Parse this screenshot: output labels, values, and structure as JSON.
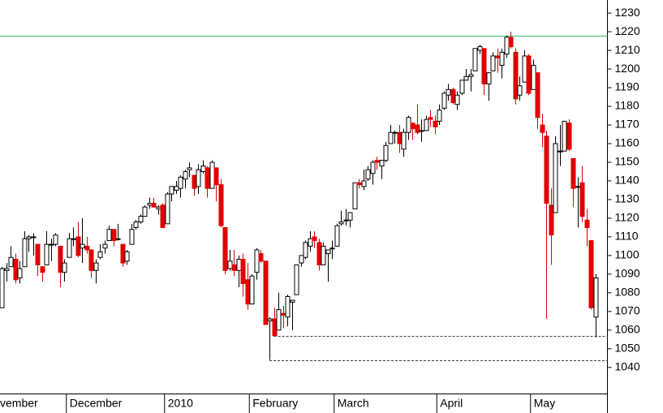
{
  "chart_data": {
    "type": "candlestick",
    "open": [
      1072,
      1092,
      1094,
      1098,
      1088,
      1094,
      1109,
      1110,
      1106,
      1094,
      1095,
      1106,
      1106,
      1105,
      1091,
      1099,
      1109,
      1110,
      1104,
      1105,
      1103,
      1092,
      1099,
      1104,
      1108,
      1114,
      1109,
      1106,
      1097,
      1106,
      1115,
      1118,
      1121,
      1127,
      1128,
      1125,
      1127,
      1117,
      1133,
      1135,
      1136,
      1141,
      1146,
      1143,
      1137,
      1145,
      1147,
      1136,
      1147,
      1138,
      1115,
      1093,
      1095,
      1092,
      1098,
      1087,
      1074,
      1091,
      1101,
      1097,
      1065,
      1066,
      1060,
      1069,
      1067,
      1075,
      1079,
      1096,
      1099,
      1105,
      1110,
      1107,
      1095,
      1101,
      1104,
      1105,
      1117,
      1119,
      1119,
      1125,
      1139,
      1137,
      1141,
      1144,
      1151,
      1148,
      1151,
      1160,
      1166,
      1166,
      1157,
      1166,
      1171,
      1170,
      1167,
      1167,
      1174,
      1172,
      1172,
      1179,
      1186,
      1189,
      1181,
      1187,
      1194,
      1196,
      1199,
      1210,
      1211,
      1192,
      1199,
      1207,
      1202,
      1208,
      1217,
      1209,
      1186,
      1193,
      1207,
      1189,
      1198,
      1170,
      1164,
      1127,
      1123,
      1156,
      1156,
      1171,
      1152,
      1137,
      1139,
      1119,
      1108,
      1067
    ],
    "high": [
      1094,
      1096,
      1105,
      1101,
      1097,
      1113,
      1111,
      1112,
      1106,
      1094,
      1113,
      1109,
      1112,
      1105,
      1098,
      1112,
      1115,
      1118,
      1120,
      1110,
      1103,
      1098,
      1106,
      1108,
      1116,
      1114,
      1117,
      1106,
      1103,
      1117,
      1119,
      1122,
      1127,
      1131,
      1131,
      1127,
      1128,
      1134,
      1137,
      1140,
      1143,
      1146,
      1150,
      1143,
      1149,
      1151,
      1148,
      1151,
      1147,
      1141,
      1115,
      1103,
      1103,
      1100,
      1101,
      1096,
      1090,
      1104,
      1103,
      1097,
      1067,
      1072,
      1080,
      1073,
      1079,
      1076,
      1095,
      1100,
      1108,
      1113,
      1113,
      1109,
      1107,
      1103,
      1108,
      1117,
      1124,
      1125,
      1123,
      1139,
      1141,
      1146,
      1148,
      1151,
      1153,
      1151,
      1161,
      1170,
      1167,
      1170,
      1168,
      1175,
      1171,
      1181,
      1173,
      1175,
      1178,
      1175,
      1181,
      1188,
      1192,
      1190,
      1188,
      1194,
      1200,
      1200,
      1211,
      1213,
      1211,
      1198,
      1209,
      1211,
      1211,
      1218,
      1220,
      1211,
      1196,
      1210,
      1208,
      1205,
      1198,
      1176,
      1167,
      1136,
      1164,
      1170,
      1172,
      1173,
      1152,
      1142,
      1148,
      1125,
      1108,
      1090
    ],
    "low": [
      1072,
      1086,
      1094,
      1085,
      1085,
      1094,
      1102,
      1100,
      1089,
      1086,
      1095,
      1097,
      1105,
      1083,
      1086,
      1099,
      1105,
      1099,
      1096,
      1101,
      1088,
      1085,
      1098,
      1101,
      1108,
      1105,
      1108,
      1094,
      1095,
      1106,
      1114,
      1117,
      1121,
      1125,
      1126,
      1122,
      1115,
      1117,
      1129,
      1133,
      1131,
      1136,
      1142,
      1132,
      1133,
      1144,
      1131,
      1136,
      1129,
      1115,
      1090,
      1092,
      1089,
      1083,
      1078,
      1071,
      1074,
      1087,
      1096,
      1063,
      1044,
      1057,
      1060,
      1061,
      1062,
      1060,
      1079,
      1094,
      1098,
      1102,
      1104,
      1092,
      1095,
      1086,
      1098,
      1105,
      1116,
      1116,
      1115,
      1125,
      1136,
      1135,
      1140,
      1138,
      1146,
      1141,
      1150,
      1160,
      1160,
      1155,
      1153,
      1162,
      1162,
      1165,
      1161,
      1167,
      1169,
      1165,
      1170,
      1178,
      1183,
      1181,
      1178,
      1186,
      1194,
      1188,
      1199,
      1208,
      1186,
      1183,
      1199,
      1198,
      1195,
      1206,
      1211,
      1181,
      1183,
      1193,
      1186,
      1189,
      1168,
      1158,
      1066,
      1095,
      1123,
      1148,
      1156,
      1156,
      1126,
      1115,
      1118,
      1105,
      1071,
      1056
    ],
    "close": [
      1093,
      1093,
      1099,
      1087,
      1093,
      1109,
      1110,
      1110,
      1095,
      1091,
      1106,
      1106,
      1111,
      1091,
      1096,
      1109,
      1109,
      1100,
      1106,
      1103,
      1092,
      1096,
      1102,
      1106,
      1114,
      1108,
      1109,
      1096,
      1102,
      1114,
      1118,
      1121,
      1126,
      1128,
      1126,
      1126,
      1115,
      1133,
      1137,
      1137,
      1142,
      1145,
      1147,
      1136,
      1146,
      1148,
      1136,
      1150,
      1138,
      1116,
      1092,
      1097,
      1092,
      1098,
      1085,
      1074,
      1089,
      1103,
      1097,
      1063,
      1066,
      1057,
      1071,
      1068,
      1078,
      1076,
      1095,
      1100,
      1107,
      1109,
      1108,
      1095,
      1105,
      1103,
      1104,
      1116,
      1118,
      1119,
      1123,
      1139,
      1138,
      1140,
      1146,
      1150,
      1150,
      1151,
      1159,
      1166,
      1166,
      1160,
      1166,
      1174,
      1168,
      1166,
      1167,
      1173,
      1173,
      1169,
      1178,
      1187,
      1189,
      1182,
      1186,
      1194,
      1196,
      1197,
      1211,
      1212,
      1192,
      1198,
      1207,
      1206,
      1209,
      1217,
      1212,
      1184,
      1191,
      1207,
      1187,
      1202,
      1174,
      1166,
      1128,
      1111,
      1160,
      1156,
      1172,
      1157,
      1136,
      1137,
      1121,
      1115,
      1072,
      1088
    ],
    "up_color": "#ffffff",
    "down_color": "#e00000",
    "ylim": [
      1026,
      1237
    ],
    "yticks": [
      1040,
      1050,
      1060,
      1070,
      1080,
      1090,
      1100,
      1110,
      1120,
      1130,
      1140,
      1150,
      1160,
      1170,
      1180,
      1190,
      1200,
      1210,
      1220,
      1230
    ],
    "xticks": [
      {
        "value": -5,
        "label": "vember"
      },
      {
        "value": 15,
        "label": "December"
      },
      {
        "value": 37,
        "label": "2010"
      },
      {
        "value": 56,
        "label": "February"
      },
      {
        "value": 75,
        "label": "March"
      },
      {
        "value": 98,
        "label": "April"
      },
      {
        "value": 119,
        "label": "May"
      }
    ],
    "hlines": [
      {
        "value": 1218,
        "color": "#3cb371",
        "start": -5,
        "dashed": false
      },
      {
        "value": 1057,
        "color": "#444444",
        "start": 61,
        "dashed": true
      },
      {
        "value": 1044,
        "color": "#444444",
        "start": 60,
        "dashed": true
      }
    ]
  }
}
